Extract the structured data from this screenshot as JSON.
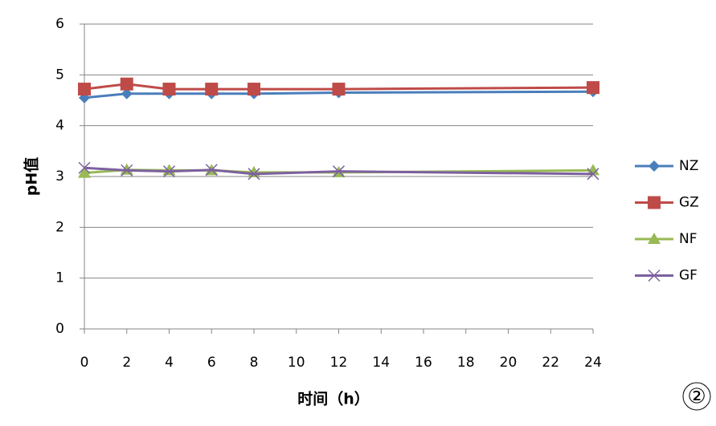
{
  "chart_data": {
    "type": "line",
    "x": [
      0,
      2,
      4,
      6,
      8,
      12,
      24
    ],
    "xlim": [
      0,
      24
    ],
    "xticks": [
      0,
      2,
      4,
      6,
      8,
      10,
      12,
      14,
      16,
      18,
      20,
      22,
      24
    ],
    "ylim": [
      0,
      6
    ],
    "yticks": [
      0,
      1,
      2,
      3,
      4,
      5,
      6
    ],
    "grid": true,
    "xlabel": "时间（h）",
    "ylabel": "pH值",
    "annotation": "②",
    "legend": "right",
    "series": [
      {
        "name": "NZ",
        "color": "#4a7ebb",
        "marker": "diamond",
        "values": [
          4.55,
          4.63,
          4.63,
          4.63,
          4.63,
          4.65,
          4.67
        ]
      },
      {
        "name": "GZ",
        "color": "#be4b48",
        "marker": "square",
        "values": [
          4.72,
          4.82,
          4.72,
          4.72,
          4.72,
          4.72,
          4.75
        ]
      },
      {
        "name": "NF",
        "color": "#98b954",
        "marker": "triangle",
        "values": [
          3.07,
          3.13,
          3.12,
          3.12,
          3.08,
          3.08,
          3.12
        ]
      },
      {
        "name": "GF",
        "color": "#7d60a0",
        "marker": "x",
        "values": [
          3.17,
          3.12,
          3.1,
          3.13,
          3.05,
          3.1,
          3.05
        ]
      }
    ]
  }
}
